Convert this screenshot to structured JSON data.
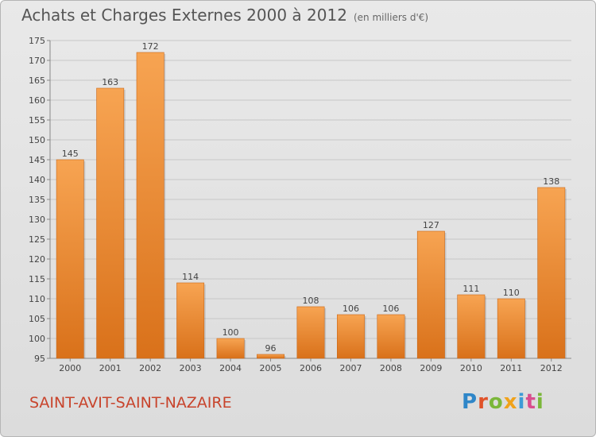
{
  "header": {
    "title": "Achats et Charges Externes 2000 à 2012",
    "unit": "(en milliers d'€)"
  },
  "footer": {
    "place": "SAINT-AVIT-SAINT-NAZAIRE",
    "logo": "Proxiti"
  },
  "colors": {
    "bar_top": "#f7a452",
    "bar_bottom": "#d9711a",
    "grid": "#c7c7c7",
    "text": "#444444",
    "place": "#c8442c"
  },
  "chart_data": {
    "type": "bar",
    "categories": [
      "2000",
      "2001",
      "2002",
      "2003",
      "2004",
      "2005",
      "2006",
      "2007",
      "2008",
      "2009",
      "2010",
      "2011",
      "2012"
    ],
    "values": [
      145,
      163,
      172,
      114,
      100,
      96,
      108,
      106,
      106,
      127,
      111,
      110,
      138
    ],
    "ylim": [
      95,
      175
    ],
    "yticks": [
      95,
      100,
      105,
      110,
      115,
      120,
      125,
      130,
      135,
      140,
      145,
      150,
      155,
      160,
      165,
      170,
      175
    ],
    "grid": true
  }
}
